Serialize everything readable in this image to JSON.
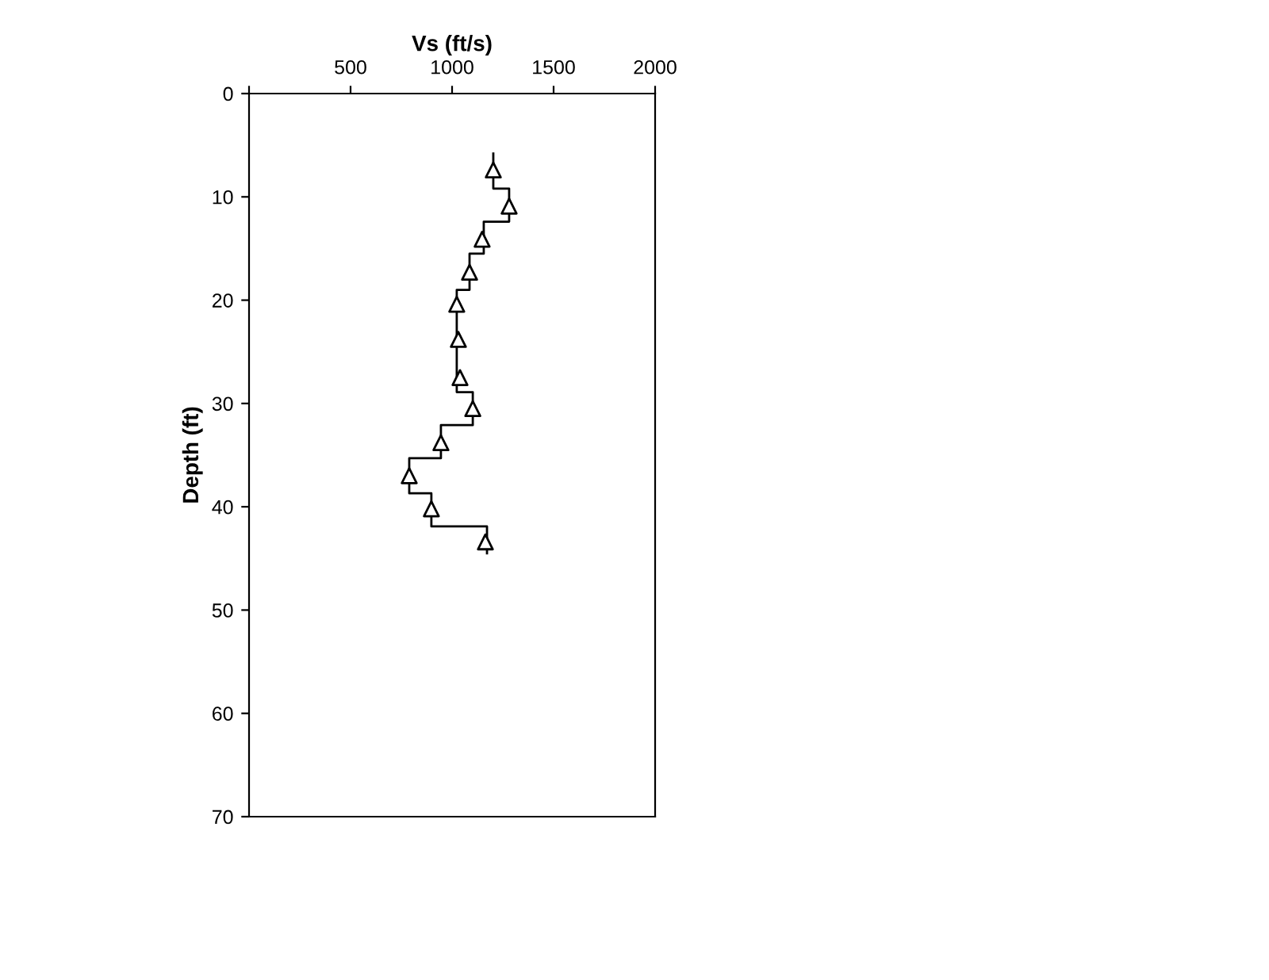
{
  "chart_data": {
    "type": "line",
    "xlabel": "Vs (ft/s)",
    "ylabel": "Depth (ft)",
    "xlim": [
      0,
      2000
    ],
    "xticks": [
      {
        "value": 0,
        "label": null
      },
      500,
      1000,
      1500,
      2000
    ],
    "ylim": [
      70,
      0
    ],
    "yticks": [
      0,
      10,
      20,
      30,
      40,
      50,
      60,
      70
    ],
    "grid": false,
    "legend": false,
    "series": [
      {
        "color": "#000000",
        "marker": "none",
        "line_style": "solid",
        "x": [
          1203,
          1203,
          1281,
          1281,
          1156,
          1156,
          1086,
          1086,
          1023,
          1023,
          1102,
          1102,
          945,
          945,
          789,
          789,
          898,
          898,
          1172,
          1172
        ],
        "values": [
          5.8,
          9.2,
          9.2,
          12.4,
          12.4,
          15.5,
          15.5,
          19.0,
          19.0,
          28.9,
          28.9,
          32.1,
          32.1,
          35.3,
          35.3,
          38.7,
          38.7,
          41.9,
          41.9,
          44.5
        ]
      },
      {
        "type": "scatter",
        "color": "#000000",
        "marker": "triangle",
        "x": [
          1203,
          1281,
          1148,
          1086,
          1023,
          1031,
          1039,
          1102,
          945,
          789,
          898,
          1164
        ],
        "values": [
          7.4,
          10.9,
          14.1,
          17.3,
          20.4,
          23.8,
          27.5,
          30.5,
          33.8,
          37.0,
          40.2,
          43.4
        ]
      }
    ]
  }
}
